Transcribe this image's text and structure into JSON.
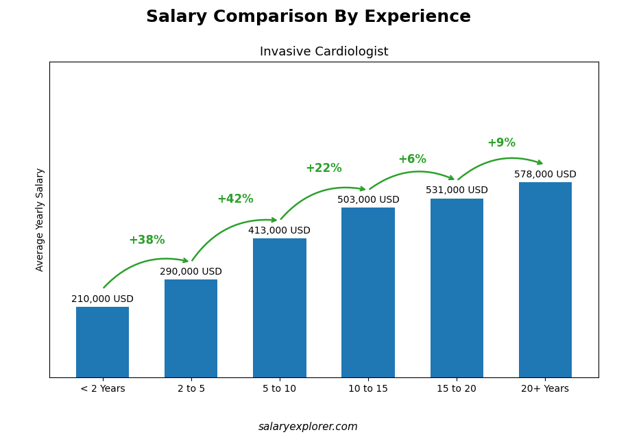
{
  "chart_data": {
    "type": "bar",
    "title": "Salary Comparison By Experience",
    "subtitle": "Invasive Cardiologist",
    "categories": [
      "< 2 Years",
      "2 to 5",
      "5 to 10",
      "10 to 15",
      "15 to 20",
      "20+ Years"
    ],
    "values": [
      210000,
      290000,
      413000,
      503000,
      531000,
      578000
    ],
    "value_labels": [
      "210,000 USD",
      "290,000 USD",
      "413,000 USD",
      "503,000 USD",
      "531,000 USD",
      "578,000 USD"
    ],
    "data_labels": true,
    "ylabel": "Average Yearly Salary",
    "ylim": [
      0,
      936360
    ],
    "tick_labels": "x",
    "grid": false,
    "annotations": [
      {
        "text": "+38%",
        "from": "< 2 Years",
        "to": "2 to 5"
      },
      {
        "text": "+42%",
        "from": "2 to 5",
        "to": "5 to 10"
      },
      {
        "text": "+22%",
        "from": "5 to 10",
        "to": "10 to 15"
      },
      {
        "text": "+6%",
        "from": "10 to 15",
        "to": "15 to 20"
      },
      {
        "text": "+9%",
        "from": "15 to 20",
        "to": "20+ Years"
      }
    ],
    "footer": "salaryexplorer.com"
  }
}
